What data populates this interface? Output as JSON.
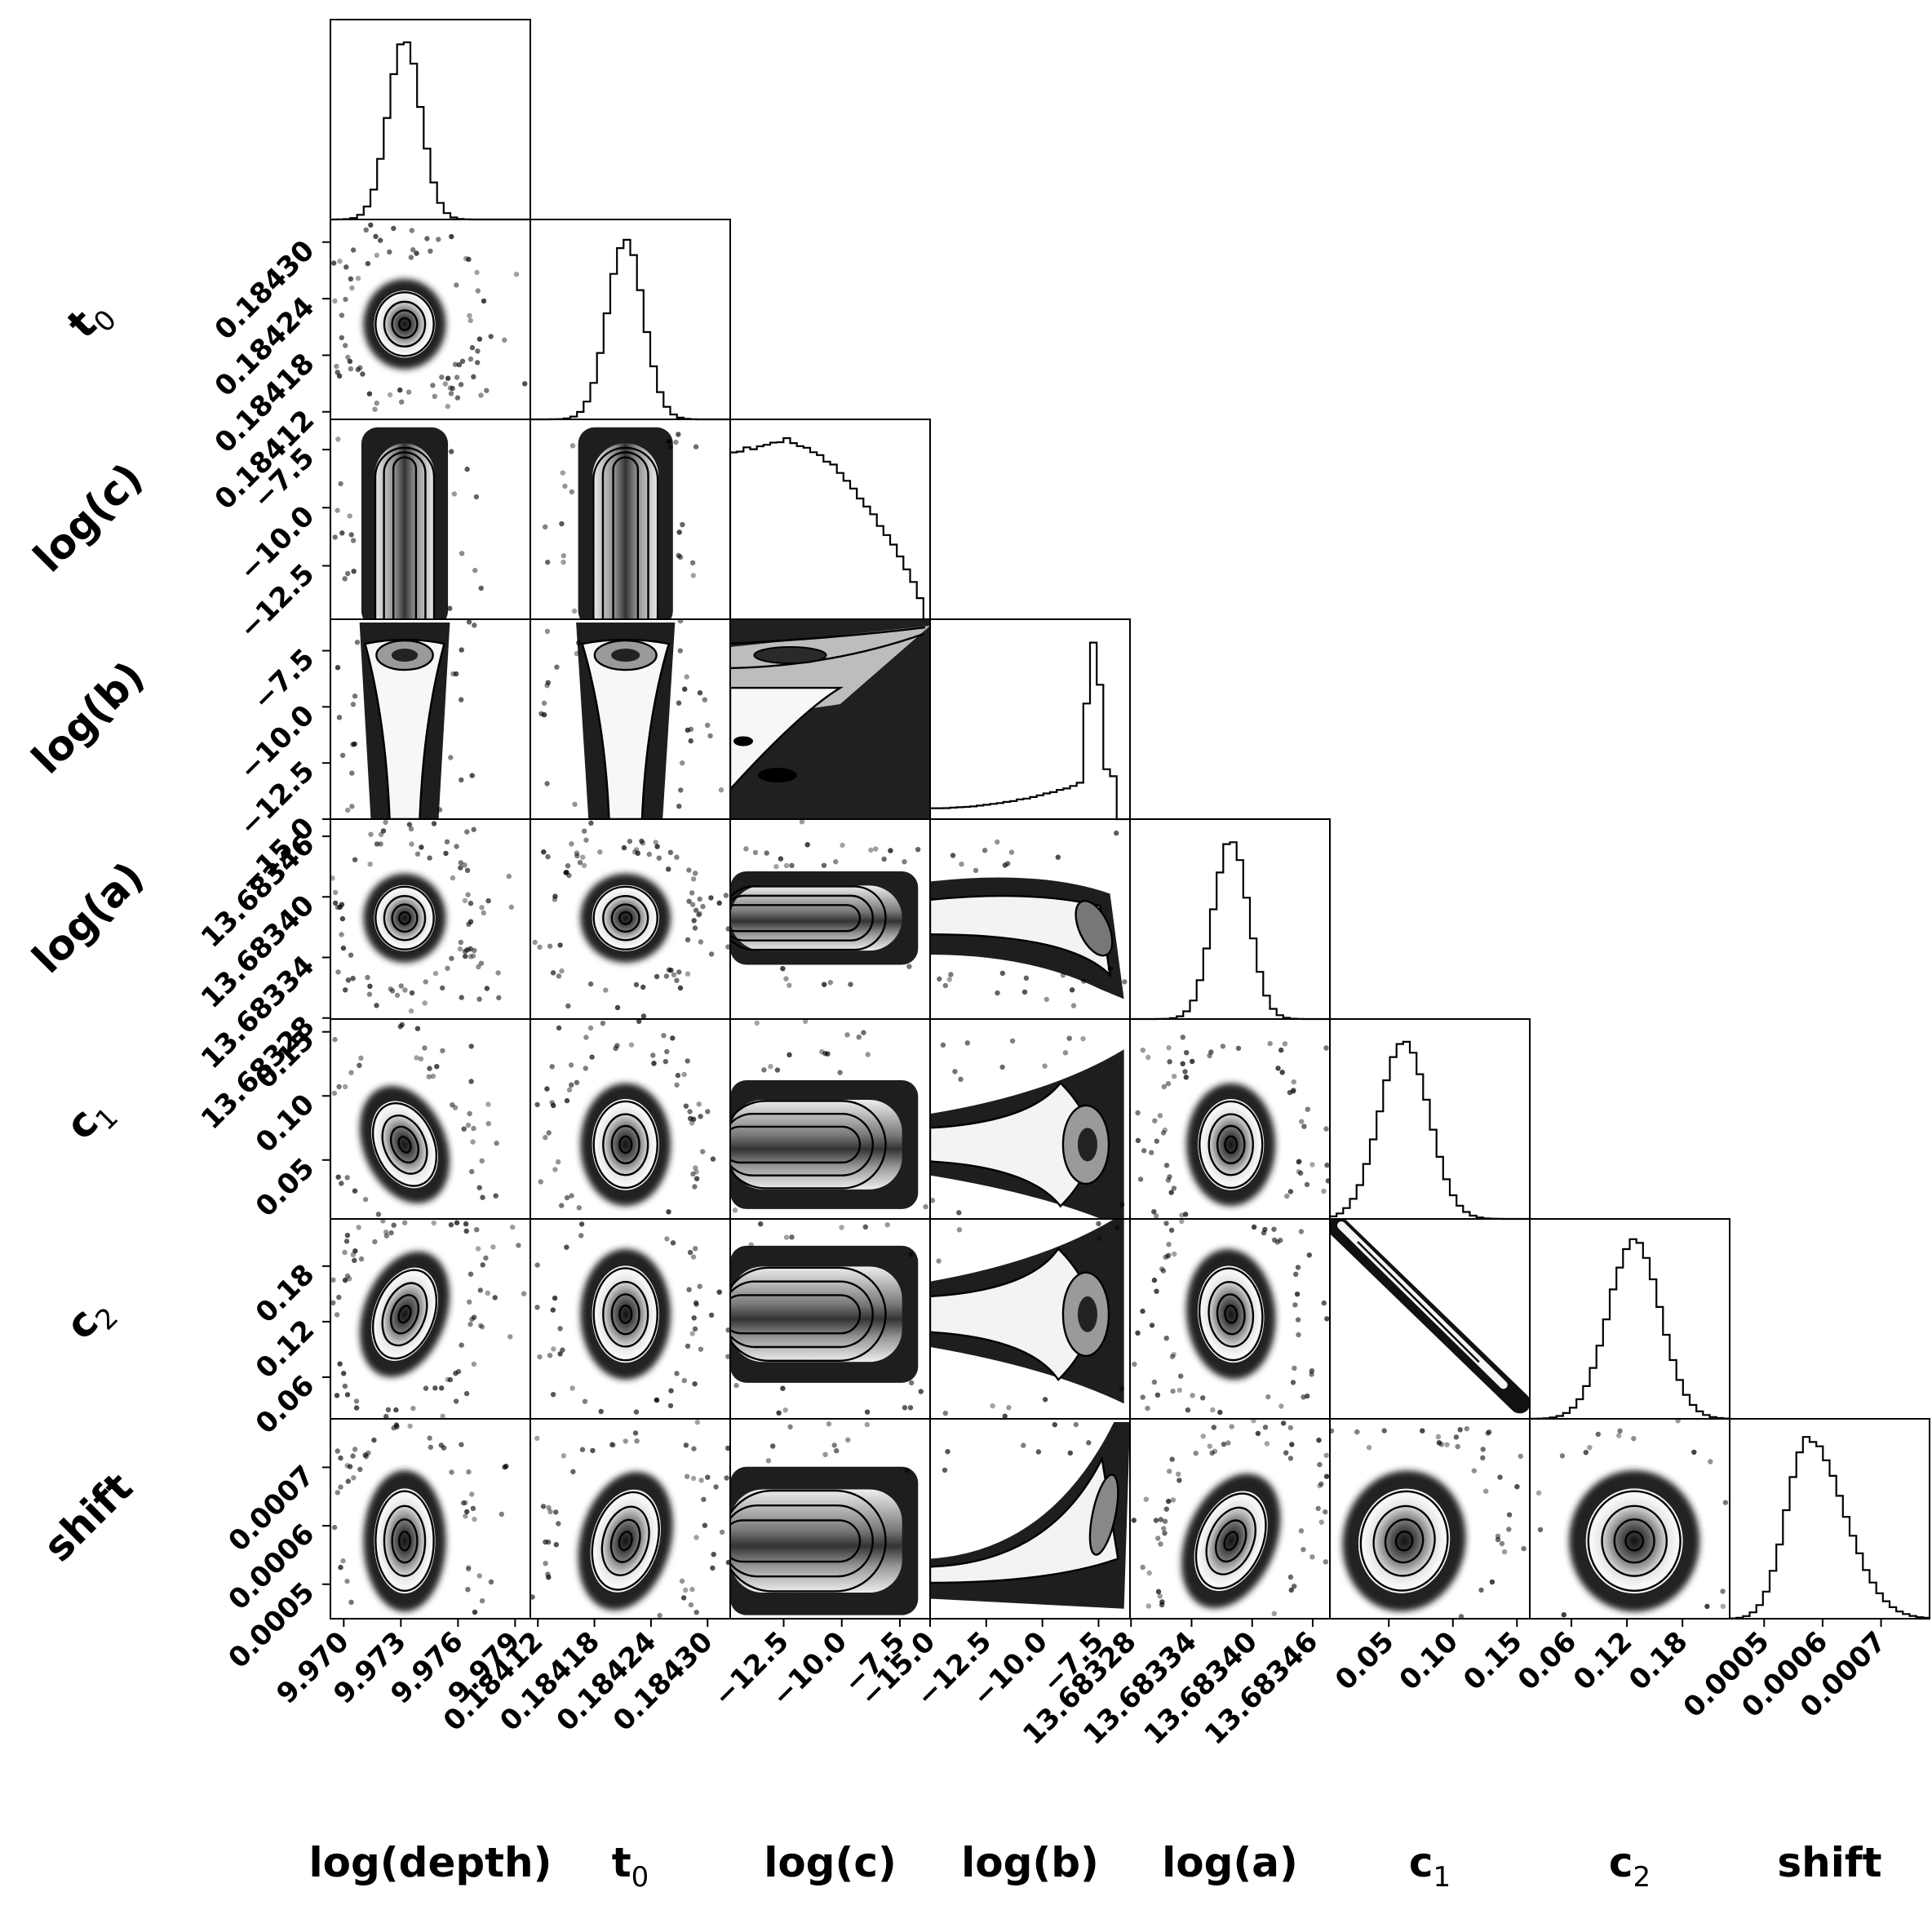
{
  "chart_data": {
    "type": "corner",
    "parameters": [
      {
        "label": "log(depth)",
        "base": "log(depth)",
        "sub": "",
        "ticks": [
          "9.970",
          "9.973",
          "9.976",
          "9.979"
        ],
        "tick_values": [
          9.97,
          9.973,
          9.976,
          9.979
        ],
        "range": [
          9.9693,
          9.9798
        ],
        "peak": 9.9732,
        "sigma": 0.00086,
        "shape": "gauss"
      },
      {
        "label": "t0",
        "base": "t",
        "sub": "0",
        "ticks": [
          "0.18412",
          "0.18418",
          "0.18424",
          "0.18430"
        ],
        "tick_values": [
          0.18412,
          0.18418,
          0.18424,
          0.1843
        ],
        "range": [
          0.184112,
          0.184324
        ],
        "peak": 0.184213,
        "sigma": 1.9e-05,
        "shape": "gauss"
      },
      {
        "label": "log(c)",
        "base": "log(c)",
        "sub": "",
        "ticks": [
          "−12.5",
          "−10.0",
          "−7.5"
        ],
        "tick_values": [
          -12.5,
          -10.0,
          -7.5
        ],
        "range": [
          -14.8,
          -6.2
        ],
        "peak": -12.4,
        "sigma": 0,
        "shape": "flat_decline"
      },
      {
        "label": "log(b)",
        "base": "log(b)",
        "sub": "",
        "ticks": [
          "−15.0",
          "−12.5",
          "−10.0",
          "−7.5"
        ],
        "tick_values": [
          -15.0,
          -12.5,
          -10.0,
          -7.5
        ],
        "range": [
          -15.0,
          -6.1
        ],
        "peak": -7.7,
        "sigma": 0.35,
        "shape": "skewed"
      },
      {
        "label": "log(a)",
        "base": "log(a)",
        "sub": "",
        "ticks": [
          "13.68328",
          "13.68334",
          "13.68340",
          "13.68346"
        ],
        "tick_values": [
          13.68328,
          13.68334,
          13.6834,
          13.68346
        ],
        "range": [
          13.683279,
          13.683477
        ],
        "peak": 13.683379,
        "sigma": 1.75e-05,
        "shape": "gauss"
      },
      {
        "label": "c1",
        "base": "c",
        "sub": "1",
        "ticks": [
          "0.05",
          "0.10",
          "0.15"
        ],
        "tick_values": [
          0.05,
          0.1,
          0.15
        ],
        "range": [
          0.004,
          0.16
        ],
        "peak": 0.062,
        "sigma": 0.019,
        "shape": "gauss"
      },
      {
        "label": "c2",
        "base": "c",
        "sub": "2",
        "ticks": [
          "0.06",
          "0.12",
          "0.18"
        ],
        "tick_values": [
          0.06,
          0.12,
          0.18
        ],
        "range": [
          0.015,
          0.231
        ],
        "peak": 0.128,
        "sigma": 0.028,
        "shape": "gauss"
      },
      {
        "label": "shift",
        "base": "shift",
        "sub": "",
        "ticks": [
          "0.0005",
          "0.0006",
          "0.0007"
        ],
        "tick_values": [
          0.0005,
          0.0006,
          0.0007
        ],
        "range": [
          0.000441,
          0.000783
        ],
        "peak": 0.000574,
        "sigma": 4.8e-05,
        "shape": "gauss"
      }
    ],
    "panel_kinds": {
      "3,2": "funnel",
      "4,3": "curve",
      "5,3": "wedge",
      "6,3": "wedge",
      "6,5": "line",
      "7,3": "rise"
    },
    "correlations": {
      "5,0": 0.45,
      "6,0": -0.4,
      "7,1": -0.3,
      "7,4": -0.45,
      "6,4": 0.1,
      "7,5": -0.2
    },
    "grid": false,
    "legend": "none"
  }
}
